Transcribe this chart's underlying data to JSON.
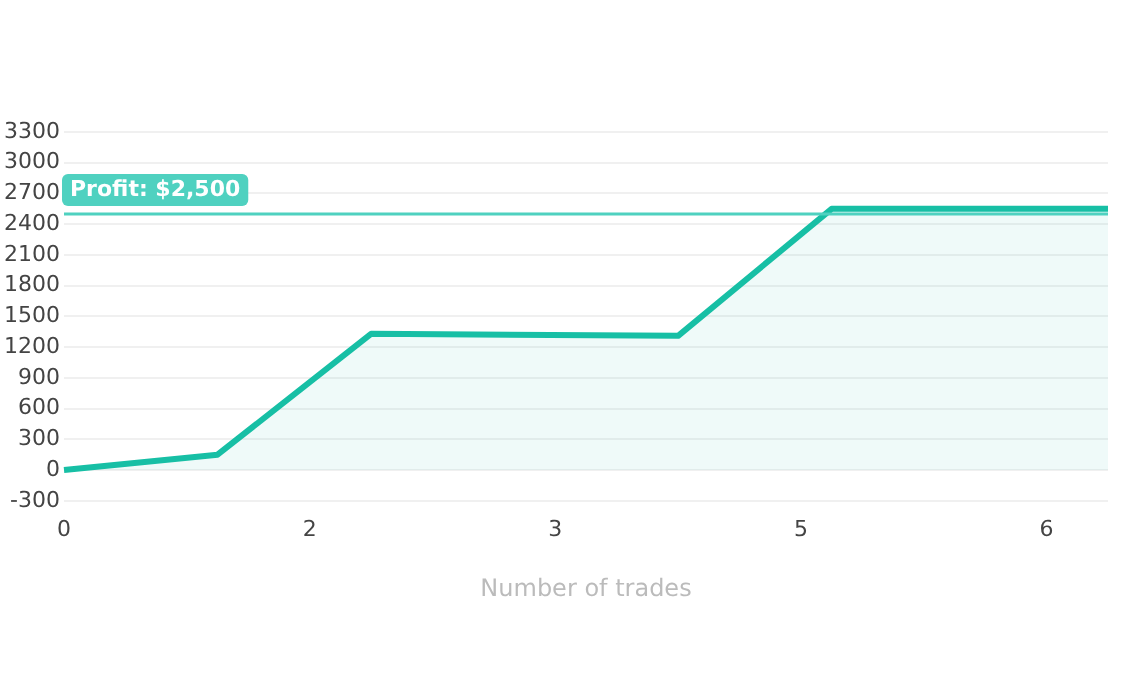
{
  "chart_data": {
    "type": "area",
    "xlabel": "Number of trades",
    "categories": [
      "0",
      null,
      null,
      null,
      null,
      null,
      null,
      null,
      "2",
      null,
      null,
      null,
      null,
      null,
      null,
      null,
      "3",
      null,
      null,
      null,
      null,
      null,
      null,
      null,
      "5",
      null,
      null,
      null,
      null,
      null,
      null,
      null,
      "6",
      null,
      null
    ],
    "series": [
      {
        "color": "#17bfa5",
        "values": [
          0,
          null,
          null,
          null,
          null,
          150,
          null,
          null,
          null,
          null,
          1330,
          null,
          null,
          null,
          null,
          null,
          null,
          null,
          null,
          null,
          1310,
          null,
          null,
          null,
          null,
          2550,
          null,
          null,
          null,
          null,
          null,
          null,
          null,
          null,
          2550
        ]
      }
    ],
    "ylim": [
      -300,
      3300
    ],
    "yticks": [
      -300,
      0,
      300,
      600,
      900,
      1200,
      1500,
      1800,
      2100,
      2400,
      2700,
      3000,
      3300
    ],
    "grid": "y",
    "legend": false,
    "ref_lines": [
      {
        "axis": "y",
        "value": 2500,
        "label": "Profit: $2,500",
        "color": "#4fd1c0"
      }
    ]
  }
}
